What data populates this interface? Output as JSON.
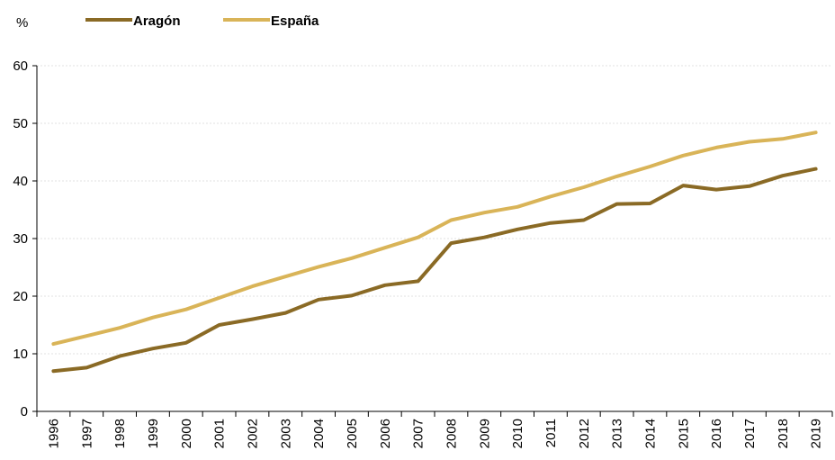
{
  "chart_data": {
    "type": "line",
    "unit_label": "%",
    "categories": [
      "1996",
      "1997",
      "1998",
      "1999",
      "2000",
      "2001",
      "2002",
      "2003",
      "2004",
      "2005",
      "2006",
      "2007",
      "2008",
      "2009",
      "2010",
      "2011",
      "2012",
      "2013",
      "2014",
      "2015",
      "2016",
      "2017",
      "2018",
      "2019"
    ],
    "series": [
      {
        "name": "Aragón",
        "color": "#8a6a25",
        "values": [
          7.0,
          7.6,
          9.6,
          10.9,
          11.9,
          15.0,
          16.0,
          17.1,
          19.4,
          20.1,
          21.9,
          22.6,
          29.2,
          30.2,
          31.6,
          32.7,
          33.2,
          36.0,
          36.1,
          39.2,
          38.5,
          39.1,
          40.9,
          42.1
        ]
      },
      {
        "name": "España",
        "color": "#d9b458",
        "values": [
          11.7,
          13.1,
          14.5,
          16.3,
          17.7,
          19.7,
          21.7,
          23.4,
          25.1,
          26.6,
          28.4,
          30.2,
          33.2,
          34.5,
          35.5,
          37.3,
          38.9,
          40.8,
          42.5,
          44.4,
          45.8,
          46.8,
          47.3,
          48.4
        ]
      }
    ],
    "ylim": [
      0,
      60
    ],
    "yticks": [
      0,
      10,
      20,
      30,
      40,
      50,
      60
    ],
    "grid": true,
    "legend_position": "top"
  }
}
